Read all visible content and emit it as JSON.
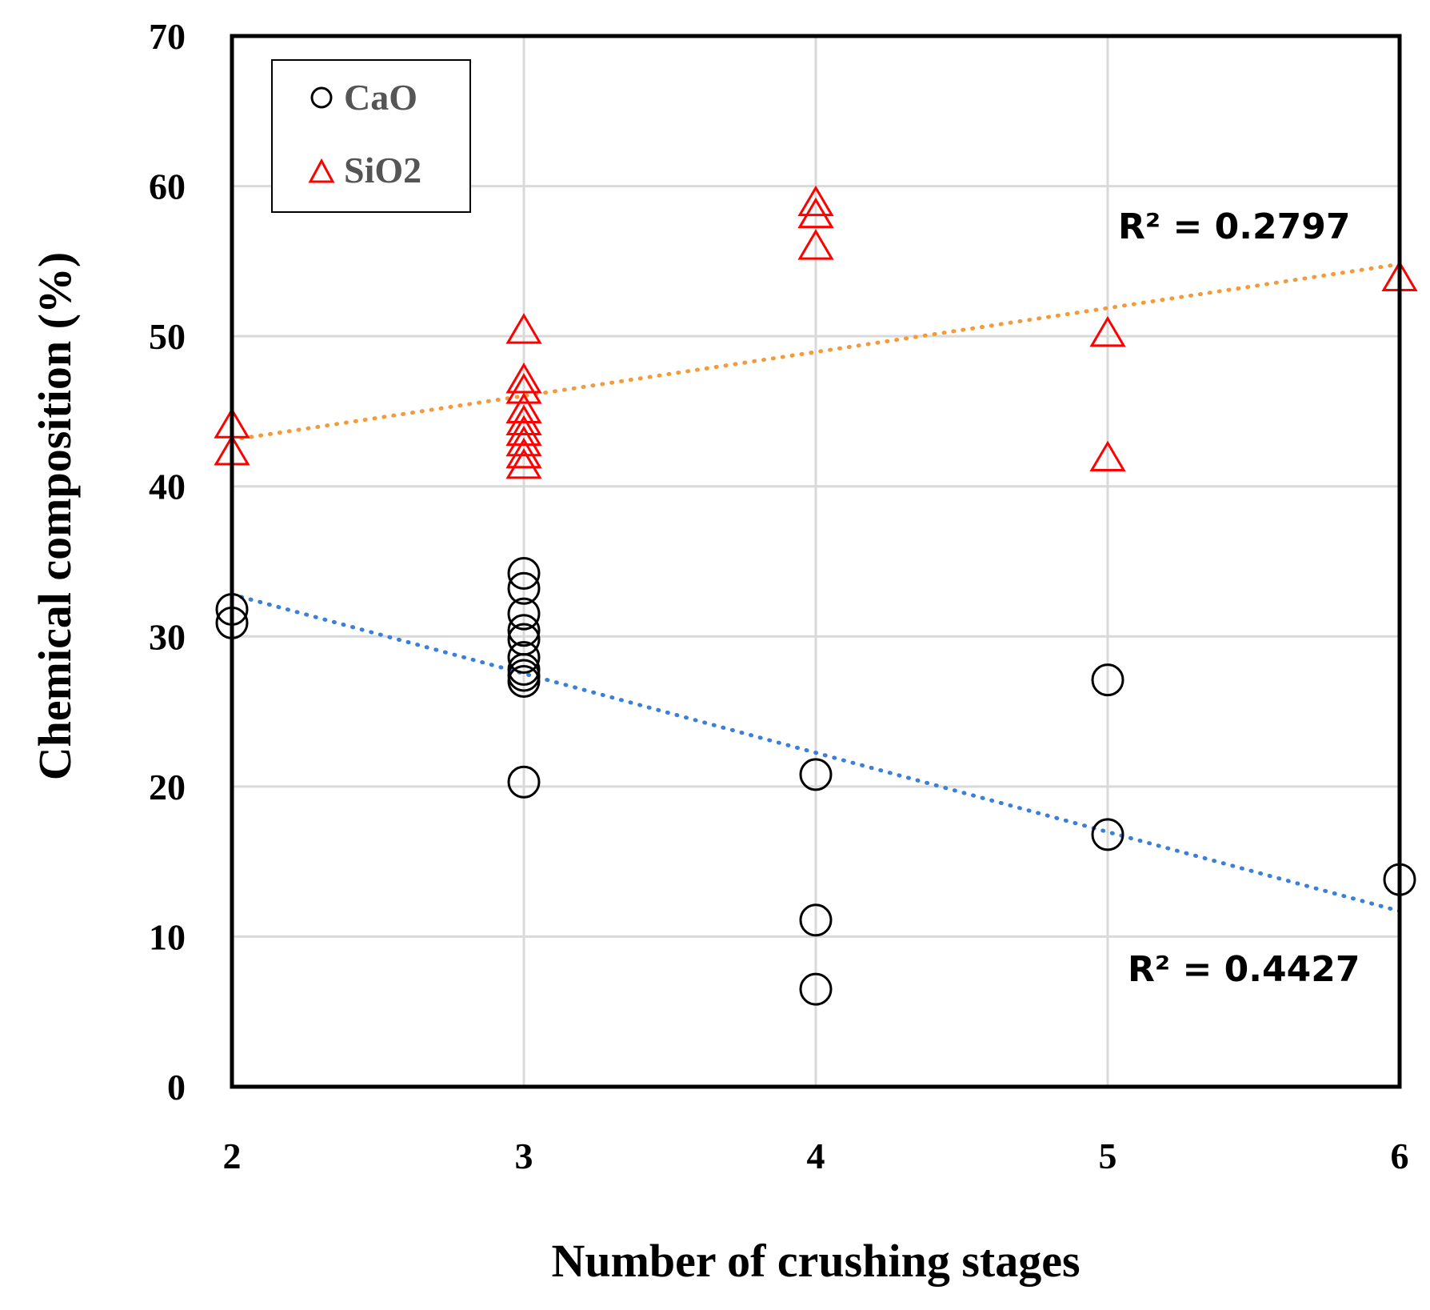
{
  "chart_data": {
    "type": "scatter",
    "title": "",
    "xlabel": "Number of crushing stages",
    "ylabel": "Chemical composition (%)",
    "xlim": [
      2,
      6
    ],
    "ylim": [
      0,
      70
    ],
    "x_ticks": [
      2,
      3,
      4,
      5,
      6
    ],
    "y_ticks": [
      0,
      10,
      20,
      30,
      40,
      50,
      60,
      70
    ],
    "grid": true,
    "legend_position": "top-left",
    "series": [
      {
        "name": "CaO",
        "marker": "circle",
        "color": "#000000",
        "points": [
          {
            "x": 2,
            "y": 31.8
          },
          {
            "x": 2,
            "y": 30.9
          },
          {
            "x": 3,
            "y": 34.2
          },
          {
            "x": 3,
            "y": 33.2
          },
          {
            "x": 3,
            "y": 31.5
          },
          {
            "x": 3,
            "y": 30.4
          },
          {
            "x": 3,
            "y": 29.8
          },
          {
            "x": 3,
            "y": 28.6
          },
          {
            "x": 3,
            "y": 27.8
          },
          {
            "x": 3,
            "y": 27.4
          },
          {
            "x": 3,
            "y": 27.0
          },
          {
            "x": 3,
            "y": 20.3
          },
          {
            "x": 4,
            "y": 20.8
          },
          {
            "x": 4,
            "y": 11.1
          },
          {
            "x": 4,
            "y": 6.5
          },
          {
            "x": 5,
            "y": 27.1
          },
          {
            "x": 5,
            "y": 16.8
          },
          {
            "x": 6,
            "y": 13.8
          }
        ],
        "trendline": {
          "x": [
            2,
            6
          ],
          "y": [
            32.8,
            11.7
          ],
          "color": "#3a7fd9",
          "r2_label": "R² = 0.4427"
        }
      },
      {
        "name": "SiO2",
        "marker": "triangle",
        "color": "#ff0000",
        "points": [
          {
            "x": 2,
            "y": 44.0
          },
          {
            "x": 2,
            "y": 42.2
          },
          {
            "x": 3,
            "y": 50.3
          },
          {
            "x": 3,
            "y": 47.0
          },
          {
            "x": 3,
            "y": 46.3
          },
          {
            "x": 3,
            "y": 45.0
          },
          {
            "x": 3,
            "y": 44.2
          },
          {
            "x": 3,
            "y": 43.5
          },
          {
            "x": 3,
            "y": 42.8
          },
          {
            "x": 3,
            "y": 42.0
          },
          {
            "x": 3,
            "y": 41.3
          },
          {
            "x": 4,
            "y": 58.8
          },
          {
            "x": 4,
            "y": 58.0
          },
          {
            "x": 4,
            "y": 55.9
          },
          {
            "x": 5,
            "y": 50.1
          },
          {
            "x": 5,
            "y": 41.8
          },
          {
            "x": 6,
            "y": 53.8
          }
        ],
        "trendline": {
          "x": [
            2,
            6
          ],
          "y": [
            43.1,
            54.8
          ],
          "color": "#f59a3a",
          "r2_label": "R² = 0.2797"
        }
      }
    ]
  }
}
